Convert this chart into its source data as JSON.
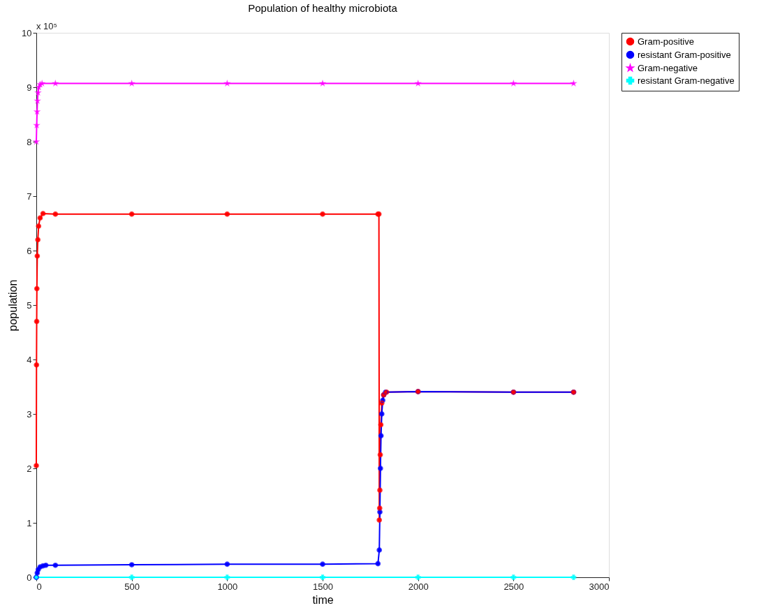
{
  "chart_data": {
    "type": "line",
    "title": "Population of healthy microbiota",
    "xlabel": "time",
    "ylabel": "population",
    "annotations": [
      "x 10⁵"
    ],
    "xlim": [
      0,
      3000
    ],
    "xticks": [
      0,
      500,
      1000,
      1500,
      2000,
      2500,
      3000
    ],
    "ylim": [
      0,
      10
    ],
    "yticks": [
      0,
      1,
      2,
      3,
      4,
      5,
      6,
      7,
      8,
      9,
      10
    ],
    "grid": false,
    "legend": "top right",
    "line_style": "solid",
    "series": [
      {
        "name": "Gram-positive",
        "color": "#ff0000",
        "marker": "circle",
        "x": [
          0,
          1,
          2,
          3,
          5,
          8,
          12,
          20,
          35,
          100,
          500,
          1000,
          1500,
          1790,
          1795,
          1797,
          1799,
          1800,
          1802,
          1805,
          1810,
          1820,
          1835,
          2000,
          2500,
          2815
        ],
        "values": [
          2.05,
          3.9,
          4.7,
          5.3,
          5.9,
          6.2,
          6.45,
          6.6,
          6.68,
          6.67,
          6.67,
          6.67,
          6.67,
          6.67,
          6.67,
          1.05,
          1.27,
          1.6,
          2.25,
          2.8,
          3.2,
          3.35,
          3.4,
          3.41,
          3.4,
          3.4
        ]
      },
      {
        "name": "resistant Gram-positive",
        "color": "#0000ff",
        "marker": "circle",
        "x": [
          0,
          5,
          10,
          20,
          35,
          50,
          100,
          500,
          1000,
          1500,
          1790,
          1797,
          1800,
          1803,
          1806,
          1810,
          1815,
          1820,
          1830,
          2000,
          2500,
          2815
        ],
        "values": [
          0,
          0.08,
          0.14,
          0.19,
          0.21,
          0.22,
          0.22,
          0.23,
          0.24,
          0.24,
          0.25,
          0.5,
          1.2,
          2.0,
          2.6,
          3.0,
          3.25,
          3.35,
          3.4,
          3.41,
          3.4,
          3.4
        ]
      },
      {
        "name": "Gram-negative",
        "color": "#ff00ff",
        "marker": "star",
        "x": [
          0,
          2,
          4,
          6,
          9,
          13,
          20,
          30,
          100,
          500,
          1000,
          1500,
          2000,
          2500,
          2815
        ],
        "values": [
          8.0,
          8.3,
          8.55,
          8.75,
          8.9,
          9.0,
          9.05,
          9.07,
          9.07,
          9.07,
          9.07,
          9.07,
          9.07,
          9.07,
          9.07
        ]
      },
      {
        "name": "resistant Gram-negative",
        "color": "#00ffff",
        "marker": "cross",
        "x": [
          0,
          500,
          1000,
          1500,
          2000,
          2500,
          2815
        ],
        "values": [
          0,
          0,
          0,
          0,
          0,
          0,
          0
        ]
      }
    ]
  }
}
